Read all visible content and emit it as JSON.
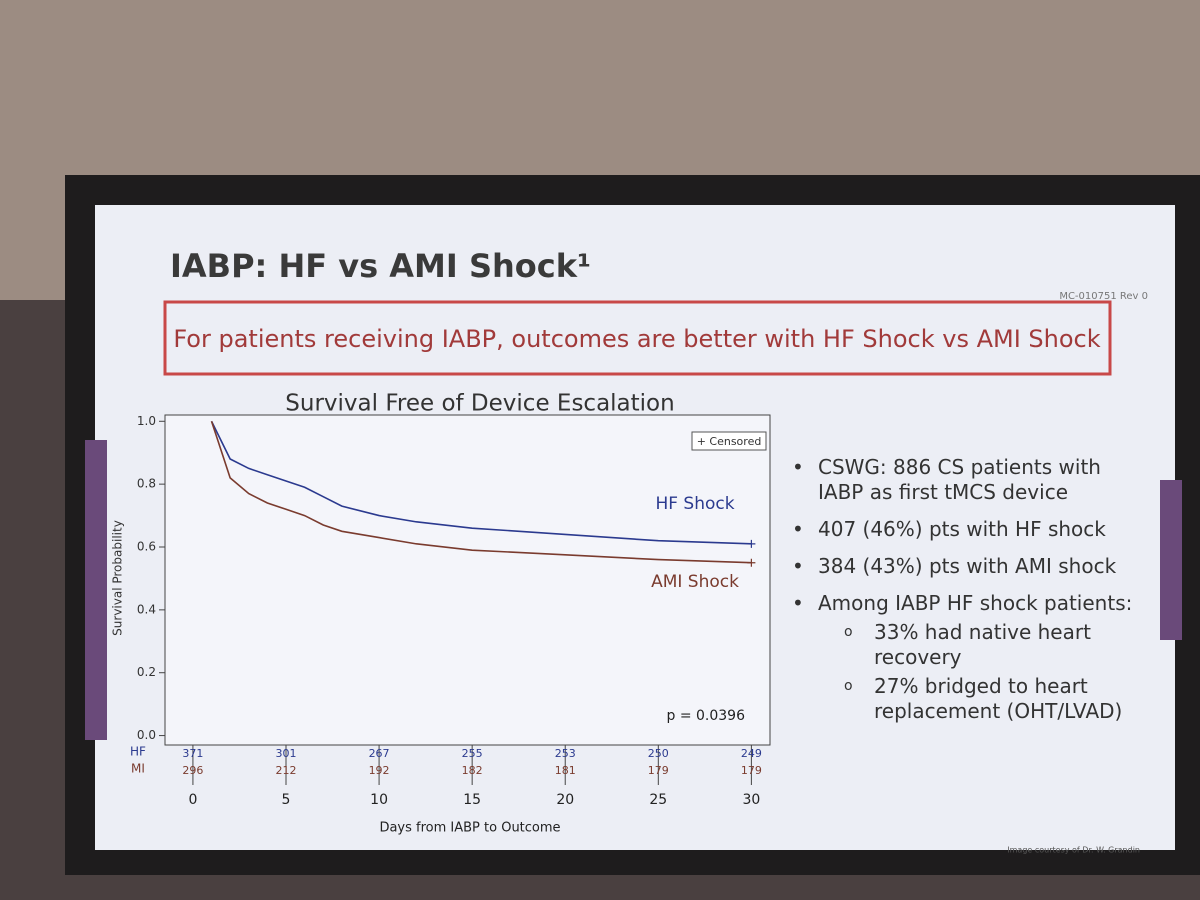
{
  "slide_code": "MC-010751 Rev 0",
  "header": {
    "title": "IABP: HF vs AMI Shock¹",
    "subtitle": "For patients receiving IABP, outcomes are better with HF Shock vs AMI Shock"
  },
  "chart_data": {
    "type": "line",
    "title": "Survival Free of Device Escalation",
    "x_label": "Days from IABP to Outcome",
    "y_label": "Survival Probability",
    "legend": "+ Censored",
    "annotation": "p = 0.0396",
    "xlim": [
      -1.5,
      31
    ],
    "ylim": [
      -0.03,
      1.02
    ],
    "xticks": [
      0,
      5,
      10,
      15,
      20,
      25,
      30
    ],
    "yticks": [
      {
        "value": 0,
        "label": "0.0"
      },
      0.2,
      0.4,
      0.6,
      0.8,
      {
        "value": 1,
        "label": "1.0"
      }
    ],
    "x": [
      1,
      2,
      3,
      4,
      5,
      6,
      7,
      8,
      10,
      12,
      15,
      20,
      25,
      30
    ],
    "series": [
      {
        "name": "HF Shock",
        "color": "#2b3a8f",
        "values": [
          1.0,
          0.88,
          0.85,
          0.83,
          0.81,
          0.79,
          0.76,
          0.73,
          0.7,
          0.68,
          0.66,
          0.64,
          0.62,
          0.61
        ]
      },
      {
        "name": "AMI Shock",
        "color": "#7a3b2e",
        "values": [
          1.0,
          0.82,
          0.77,
          0.74,
          0.72,
          0.7,
          0.67,
          0.65,
          0.63,
          0.61,
          0.59,
          0.575,
          0.56,
          0.55
        ]
      }
    ],
    "risk_table": [
      {
        "name": "HF",
        "values": [
          371,
          301,
          267,
          255,
          253,
          250,
          249
        ]
      },
      {
        "name": "MI",
        "values": [
          296,
          212,
          192,
          182,
          181,
          179,
          179
        ]
      }
    ]
  },
  "bullets": [
    {
      "text": "CSWG: 886 CS patients with IABP as first tMCS device"
    },
    {
      "text": "407 (46%) pts with HF shock"
    },
    {
      "text": "384 (43%) pts with AMI shock"
    },
    {
      "text": "Among IABP HF shock patients:",
      "sub": [
        "33% had native heart recovery",
        "27% bridged to heart replacement (OHT/LVAD)"
      ]
    }
  ],
  "footnote": "Image courtesy of Dr. W. Grandin"
}
